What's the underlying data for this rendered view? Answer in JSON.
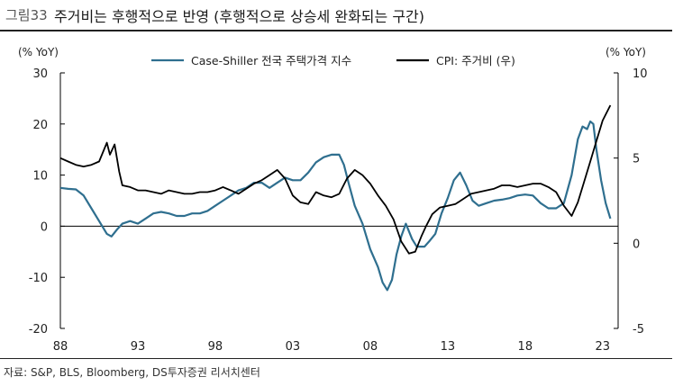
{
  "header": {
    "figure_label": "그림33",
    "title": "주거비는 후행적으로 반영 (후행적으로 상승세 완화되는 구간)"
  },
  "footer": {
    "source": "자료: S&P, BLS, Bloomberg, DS투자증권 리서치센터"
  },
  "chart_data": {
    "type": "line",
    "left_unit": "(% YoY)",
    "right_unit": "(% YoY)",
    "x_ticks": [
      "88",
      "93",
      "98",
      "03",
      "08",
      "13",
      "18",
      "23"
    ],
    "x_tick_values": [
      1988,
      1993,
      1998,
      2003,
      2008,
      2013,
      2018,
      2023
    ],
    "x_range": [
      1988,
      2024
    ],
    "left_axis": {
      "range": [
        -20,
        30
      ],
      "ticks": [
        30,
        20,
        10,
        0,
        -10,
        -20
      ]
    },
    "right_axis": {
      "range": [
        -5,
        10
      ],
      "ticks": [
        10,
        5,
        0,
        -5
      ]
    },
    "legend": [
      "Case-Shiller 전국 주택가격 지수",
      "CPI: 주거비 (우)"
    ],
    "series": [
      {
        "name": "Case-Shiller 전국 주택가격 지수",
        "axis": "left",
        "color": "#2f6f8f",
        "points": [
          [
            1988.0,
            7.5
          ],
          [
            1988.5,
            7.3
          ],
          [
            1989.0,
            7.2
          ],
          [
            1989.5,
            6.0
          ],
          [
            1990.0,
            3.5
          ],
          [
            1990.5,
            1.0
          ],
          [
            1991.0,
            -1.5
          ],
          [
            1991.3,
            -2.0
          ],
          [
            1991.7,
            -0.5
          ],
          [
            1992.0,
            0.5
          ],
          [
            1992.5,
            1.0
          ],
          [
            1993.0,
            0.5
          ],
          [
            1993.5,
            1.5
          ],
          [
            1994.0,
            2.5
          ],
          [
            1994.5,
            2.8
          ],
          [
            1995.0,
            2.5
          ],
          [
            1995.5,
            2.0
          ],
          [
            1996.0,
            2.0
          ],
          [
            1996.5,
            2.5
          ],
          [
            1997.0,
            2.5
          ],
          [
            1997.5,
            3.0
          ],
          [
            1998.0,
            4.0
          ],
          [
            1998.5,
            5.0
          ],
          [
            1999.0,
            6.0
          ],
          [
            1999.5,
            7.0
          ],
          [
            2000.0,
            7.5
          ],
          [
            2000.5,
            8.5
          ],
          [
            2001.0,
            8.5
          ],
          [
            2001.5,
            7.5
          ],
          [
            2002.0,
            8.5
          ],
          [
            2002.5,
            9.5
          ],
          [
            2003.0,
            9.0
          ],
          [
            2003.5,
            9.0
          ],
          [
            2004.0,
            10.5
          ],
          [
            2004.5,
            12.5
          ],
          [
            2005.0,
            13.5
          ],
          [
            2005.5,
            14.0
          ],
          [
            2006.0,
            14.0
          ],
          [
            2006.3,
            12.0
          ],
          [
            2006.6,
            8.5
          ],
          [
            2007.0,
            4.0
          ],
          [
            2007.5,
            0.5
          ],
          [
            2008.0,
            -4.5
          ],
          [
            2008.5,
            -8.0
          ],
          [
            2008.8,
            -11.0
          ],
          [
            2009.1,
            -12.5
          ],
          [
            2009.4,
            -10.5
          ],
          [
            2009.7,
            -5.5
          ],
          [
            2010.0,
            -2.0
          ],
          [
            2010.3,
            0.5
          ],
          [
            2010.7,
            -2.5
          ],
          [
            2011.0,
            -4.0
          ],
          [
            2011.5,
            -4.0
          ],
          [
            2011.8,
            -3.0
          ],
          [
            2012.2,
            -1.5
          ],
          [
            2012.6,
            2.5
          ],
          [
            2013.0,
            5.5
          ],
          [
            2013.4,
            9.0
          ],
          [
            2013.8,
            10.5
          ],
          [
            2014.2,
            8.0
          ],
          [
            2014.6,
            5.0
          ],
          [
            2015.0,
            4.0
          ],
          [
            2015.5,
            4.5
          ],
          [
            2016.0,
            5.0
          ],
          [
            2016.5,
            5.2
          ],
          [
            2017.0,
            5.5
          ],
          [
            2017.5,
            6.0
          ],
          [
            2018.0,
            6.2
          ],
          [
            2018.5,
            6.0
          ],
          [
            2019.0,
            4.5
          ],
          [
            2019.5,
            3.5
          ],
          [
            2020.0,
            3.5
          ],
          [
            2020.5,
            4.5
          ],
          [
            2021.0,
            10.0
          ],
          [
            2021.4,
            17.0
          ],
          [
            2021.7,
            19.5
          ],
          [
            2022.0,
            19.0
          ],
          [
            2022.2,
            20.5
          ],
          [
            2022.4,
            20.0
          ],
          [
            2022.6,
            15.0
          ],
          [
            2022.9,
            9.0
          ],
          [
            2023.2,
            4.5
          ],
          [
            2023.5,
            1.5
          ]
        ]
      },
      {
        "name": "CPI: 주거비 (우)",
        "axis": "right",
        "color": "#000000",
        "points": [
          [
            1988.0,
            5.0
          ],
          [
            1988.5,
            4.8
          ],
          [
            1989.0,
            4.6
          ],
          [
            1989.5,
            4.5
          ],
          [
            1990.0,
            4.6
          ],
          [
            1990.5,
            4.8
          ],
          [
            1991.0,
            5.9
          ],
          [
            1991.2,
            5.2
          ],
          [
            1991.5,
            5.8
          ],
          [
            1991.8,
            4.2
          ],
          [
            1992.0,
            3.4
          ],
          [
            1992.5,
            3.3
          ],
          [
            1993.0,
            3.1
          ],
          [
            1993.5,
            3.1
          ],
          [
            1994.0,
            3.0
          ],
          [
            1994.5,
            2.9
          ],
          [
            1995.0,
            3.1
          ],
          [
            1995.5,
            3.0
          ],
          [
            1996.0,
            2.9
          ],
          [
            1996.5,
            2.9
          ],
          [
            1997.0,
            3.0
          ],
          [
            1997.5,
            3.0
          ],
          [
            1998.0,
            3.1
          ],
          [
            1998.5,
            3.3
          ],
          [
            1999.0,
            3.1
          ],
          [
            1999.5,
            2.9
          ],
          [
            2000.0,
            3.2
          ],
          [
            2000.5,
            3.5
          ],
          [
            2001.0,
            3.7
          ],
          [
            2001.5,
            4.0
          ],
          [
            2002.0,
            4.3
          ],
          [
            2002.5,
            3.8
          ],
          [
            2003.0,
            2.8
          ],
          [
            2003.5,
            2.4
          ],
          [
            2004.0,
            2.3
          ],
          [
            2004.5,
            3.0
          ],
          [
            2005.0,
            2.8
          ],
          [
            2005.5,
            2.7
          ],
          [
            2006.0,
            2.9
          ],
          [
            2006.5,
            3.8
          ],
          [
            2007.0,
            4.3
          ],
          [
            2007.5,
            4.0
          ],
          [
            2008.0,
            3.5
          ],
          [
            2008.5,
            2.8
          ],
          [
            2009.0,
            2.2
          ],
          [
            2009.5,
            1.4
          ],
          [
            2010.0,
            0.1
          ],
          [
            2010.5,
            -0.6
          ],
          [
            2010.9,
            -0.5
          ],
          [
            2011.3,
            0.4
          ],
          [
            2011.6,
            1.0
          ],
          [
            2012.0,
            1.7
          ],
          [
            2012.5,
            2.1
          ],
          [
            2013.0,
            2.2
          ],
          [
            2013.5,
            2.3
          ],
          [
            2014.0,
            2.6
          ],
          [
            2014.5,
            2.9
          ],
          [
            2015.0,
            3.0
          ],
          [
            2015.5,
            3.1
          ],
          [
            2016.0,
            3.2
          ],
          [
            2016.5,
            3.4
          ],
          [
            2017.0,
            3.4
          ],
          [
            2017.5,
            3.3
          ],
          [
            2018.0,
            3.4
          ],
          [
            2018.5,
            3.5
          ],
          [
            2019.0,
            3.5
          ],
          [
            2019.5,
            3.3
          ],
          [
            2020.0,
            3.0
          ],
          [
            2020.5,
            2.2
          ],
          [
            2021.0,
            1.6
          ],
          [
            2021.4,
            2.4
          ],
          [
            2021.8,
            3.6
          ],
          [
            2022.2,
            4.8
          ],
          [
            2022.6,
            6.0
          ],
          [
            2023.0,
            7.2
          ],
          [
            2023.5,
            8.1
          ]
        ]
      }
    ]
  }
}
